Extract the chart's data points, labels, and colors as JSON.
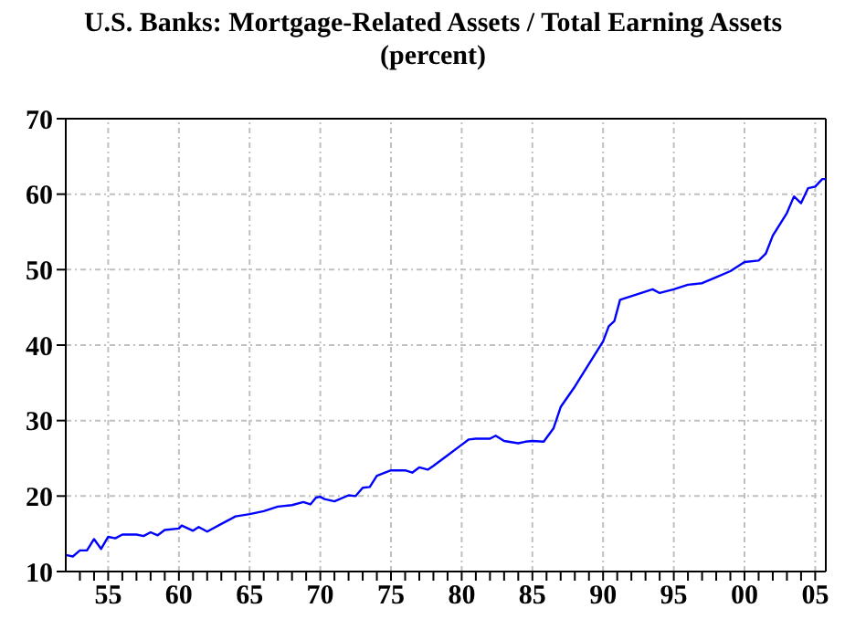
{
  "chart_data": {
    "type": "line",
    "title": "U.S. Banks: Mortgage-Related Assets / Total Earning Assets",
    "subtitle": "(percent)",
    "x": [
      1952,
      1952.5,
      1953,
      1953.5,
      1954,
      1954.5,
      1955,
      1955.5,
      1956,
      1957,
      1957.5,
      1958,
      1958.5,
      1959,
      1960,
      1960.2,
      1961,
      1961.4,
      1962,
      1963,
      1964,
      1965,
      1966,
      1967,
      1968,
      1968.8,
      1969.3,
      1969.7,
      1970,
      1970.3,
      1971,
      1972,
      1972.5,
      1973,
      1973.5,
      1974,
      1975,
      1976,
      1976.5,
      1977,
      1977.6,
      1978,
      1979,
      1980,
      1980.5,
      1981,
      1982,
      1982.4,
      1983,
      1984,
      1984.5,
      1985,
      1985.8,
      1986.5,
      1987,
      1988,
      1989,
      1990,
      1990.4,
      1990.8,
      1991.2,
      1992,
      1993,
      1993.5,
      1994,
      1995,
      1996,
      1997,
      1998,
      1999,
      2000,
      2001,
      2001.5,
      2002,
      2003,
      2003.5,
      2004,
      2004.5,
      2005,
      2005.5,
      2005.75
    ],
    "series": [
      {
        "color": "#0000ff",
        "values": [
          12.2,
          12.0,
          12.8,
          12.8,
          14.3,
          13.0,
          14.6,
          14.4,
          14.9,
          14.9,
          14.7,
          15.2,
          14.8,
          15.5,
          15.7,
          16.1,
          15.4,
          15.9,
          15.3,
          16.3,
          17.3,
          17.6,
          18.0,
          18.6,
          18.8,
          19.2,
          18.9,
          19.8,
          19.9,
          19.6,
          19.3,
          20.1,
          20.0,
          21.1,
          21.2,
          22.7,
          23.4,
          23.4,
          23.1,
          23.8,
          23.5,
          24.0,
          25.4,
          26.8,
          27.5,
          27.6,
          27.6,
          28.0,
          27.3,
          27.0,
          27.2,
          27.3,
          27.2,
          29.0,
          31.8,
          34.5,
          37.5,
          40.5,
          42.5,
          43.2,
          46.0,
          46.5,
          47.1,
          47.4,
          46.9,
          47.4,
          48.0,
          48.2,
          49.0,
          49.8,
          51.0,
          51.2,
          52.1,
          54.5,
          57.5,
          59.7,
          58.8,
          60.8,
          61.0,
          62.0,
          62.0
        ]
      }
    ],
    "xlim": [
      1952,
      2005.75
    ],
    "xticks": [
      {
        "value": 1953,
        "label": null
      },
      {
        "value": 1954,
        "label": null
      },
      {
        "value": 1955,
        "label": "55"
      },
      {
        "value": 1956,
        "label": null
      },
      {
        "value": 1957,
        "label": null
      },
      {
        "value": 1958,
        "label": null
      },
      {
        "value": 1959,
        "label": null
      },
      {
        "value": 1960,
        "label": "60"
      },
      {
        "value": 1961,
        "label": null
      },
      {
        "value": 1962,
        "label": null
      },
      {
        "value": 1963,
        "label": null
      },
      {
        "value": 1964,
        "label": null
      },
      {
        "value": 1965,
        "label": "65"
      },
      {
        "value": 1966,
        "label": null
      },
      {
        "value": 1967,
        "label": null
      },
      {
        "value": 1968,
        "label": null
      },
      {
        "value": 1969,
        "label": null
      },
      {
        "value": 1970,
        "label": "70"
      },
      {
        "value": 1971,
        "label": null
      },
      {
        "value": 1972,
        "label": null
      },
      {
        "value": 1973,
        "label": null
      },
      {
        "value": 1974,
        "label": null
      },
      {
        "value": 1975,
        "label": "75"
      },
      {
        "value": 1976,
        "label": null
      },
      {
        "value": 1977,
        "label": null
      },
      {
        "value": 1978,
        "label": null
      },
      {
        "value": 1979,
        "label": null
      },
      {
        "value": 1980,
        "label": "80"
      },
      {
        "value": 1981,
        "label": null
      },
      {
        "value": 1982,
        "label": null
      },
      {
        "value": 1983,
        "label": null
      },
      {
        "value": 1984,
        "label": null
      },
      {
        "value": 1985,
        "label": "85"
      },
      {
        "value": 1986,
        "label": null
      },
      {
        "value": 1987,
        "label": null
      },
      {
        "value": 1988,
        "label": null
      },
      {
        "value": 1989,
        "label": null
      },
      {
        "value": 1990,
        "label": "90"
      },
      {
        "value": 1991,
        "label": null
      },
      {
        "value": 1992,
        "label": null
      },
      {
        "value": 1993,
        "label": null
      },
      {
        "value": 1994,
        "label": null
      },
      {
        "value": 1995,
        "label": "95"
      },
      {
        "value": 1996,
        "label": null
      },
      {
        "value": 1997,
        "label": null
      },
      {
        "value": 1998,
        "label": null
      },
      {
        "value": 1999,
        "label": null
      },
      {
        "value": 2000,
        "label": "00"
      },
      {
        "value": 2001,
        "label": null
      },
      {
        "value": 2002,
        "label": null
      },
      {
        "value": 2003,
        "label": null
      },
      {
        "value": 2004,
        "label": null
      },
      {
        "value": 2005,
        "label": "05"
      }
    ],
    "ylim": [
      10,
      70
    ],
    "yticks": [
      10,
      20,
      30,
      40,
      50,
      60,
      70
    ],
    "grid": true,
    "marker": "none",
    "line_style": "solid"
  }
}
